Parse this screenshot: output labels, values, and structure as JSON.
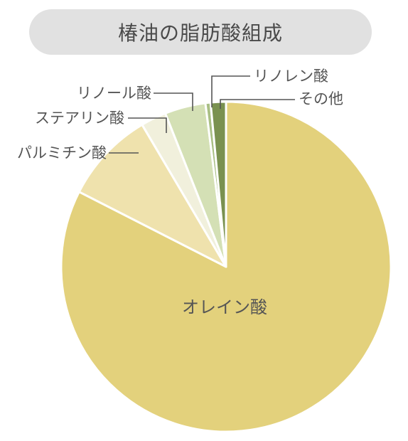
{
  "chart_data": {
    "type": "pie",
    "title": "椿油の脂肪酸組成",
    "categories": [
      "オレイン酸",
      "パルミチン酸",
      "ステアリン酸",
      "リノール酸",
      "リノレン酸",
      "その他"
    ],
    "values": [
      82.5,
      9.0,
      2.5,
      4.0,
      0.5,
      1.5
    ],
    "start_angle_deg": 0,
    "direction": "clockwise",
    "colors": [
      "#e3d17c",
      "#efe2ad",
      "#f1f0dc",
      "#d4e0b5",
      "#a9bf84",
      "#7a9150"
    ],
    "label_color": "#555555",
    "leader_color": "#555555"
  }
}
